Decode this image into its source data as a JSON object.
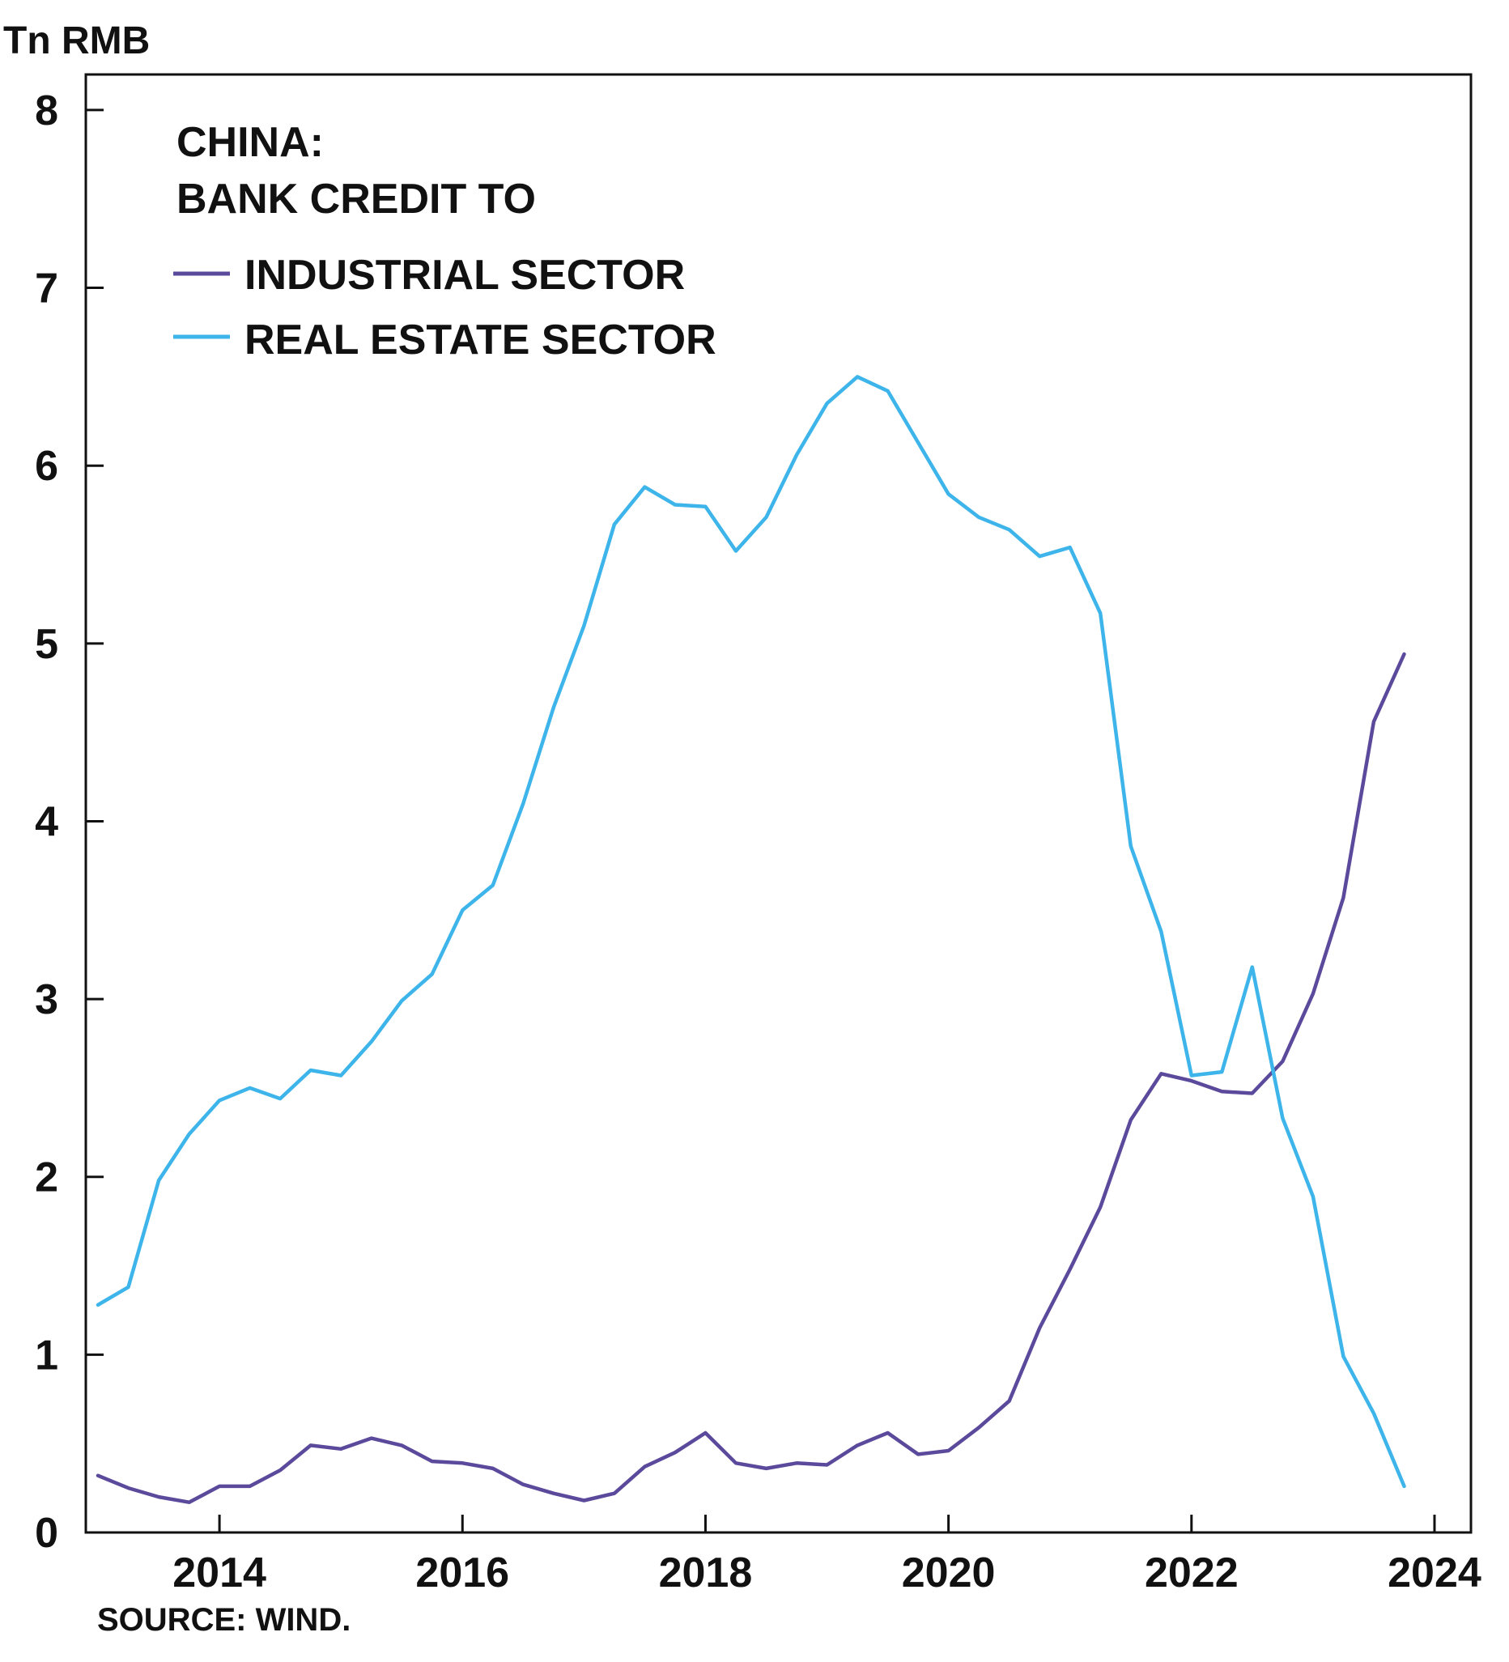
{
  "chart_data": {
    "type": "line",
    "title_lines": [
      "CHINA:",
      "BANK CREDIT TO"
    ],
    "ylabel": "Tn RMB",
    "source": "SOURCE: WIND.",
    "ylim": [
      0,
      8.2
    ],
    "xlim": [
      2012.9,
      2024.3
    ],
    "yticks": [
      "0",
      "1",
      "2",
      "3",
      "4",
      "5",
      "6",
      "7",
      "8"
    ],
    "xticks": [
      "2014",
      "2016",
      "2018",
      "2020",
      "2022",
      "2024"
    ],
    "legend_position": "top-left",
    "grid": false,
    "x": [
      2013.0,
      2013.25,
      2013.5,
      2013.75,
      2014.0,
      2014.25,
      2014.5,
      2014.75,
      2015.0,
      2015.25,
      2015.5,
      2015.75,
      2016.0,
      2016.25,
      2016.5,
      2016.75,
      2017.0,
      2017.25,
      2017.5,
      2017.75,
      2018.0,
      2018.25,
      2018.5,
      2018.75,
      2019.0,
      2019.25,
      2019.5,
      2019.75,
      2020.0,
      2020.25,
      2020.5,
      2020.75,
      2021.0,
      2021.25,
      2021.5,
      2021.75,
      2022.0,
      2022.25,
      2022.5,
      2022.75,
      2023.0,
      2023.25,
      2023.5,
      2023.75
    ],
    "series": [
      {
        "name": "INDUSTRIAL SECTOR",
        "color": "#5b4a9b",
        "values": [
          0.32,
          0.25,
          0.2,
          0.17,
          0.26,
          0.26,
          0.35,
          0.49,
          0.47,
          0.53,
          0.49,
          0.4,
          0.39,
          0.36,
          0.27,
          0.22,
          0.18,
          0.22,
          0.37,
          0.45,
          0.56,
          0.39,
          0.36,
          0.39,
          0.38,
          0.49,
          0.56,
          0.44,
          0.46,
          0.59,
          0.74,
          1.15,
          1.48,
          1.83,
          2.32,
          2.58,
          2.54,
          2.48,
          2.47,
          2.65,
          3.03,
          3.57,
          4.56,
          4.94
        ]
      },
      {
        "name": "REAL ESTATE SECTOR",
        "color": "#3db4ea",
        "values": [
          1.28,
          1.38,
          1.98,
          2.24,
          2.43,
          2.5,
          2.44,
          2.6,
          2.57,
          2.76,
          2.99,
          3.14,
          3.5,
          3.64,
          4.1,
          4.64,
          5.1,
          5.67,
          5.88,
          5.78,
          5.77,
          5.52,
          5.71,
          6.06,
          6.35,
          6.5,
          6.42,
          6.13,
          5.84,
          5.71,
          5.64,
          5.49,
          5.54,
          5.17,
          3.86,
          3.38,
          2.57,
          2.59,
          3.18,
          2.33,
          1.89,
          0.99,
          0.67,
          0.26
        ]
      }
    ]
  }
}
